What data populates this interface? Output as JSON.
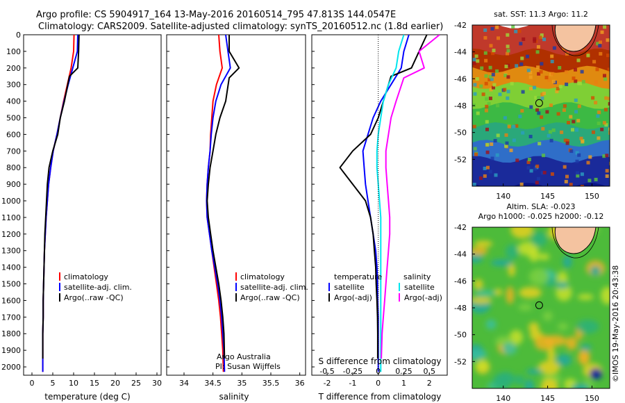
{
  "header": {
    "title_line1": "Argo profile: CS 5904917_164 13-May-2016 20160514_795 47.813S 144.0547E",
    "title_line2": "Climatology: CARS2009. Satellite-adjusted climatology: synTS_20160512.nc (1.8d earlier)"
  },
  "credit": "©IMOS 19-May-2016 20:43:38",
  "colors": {
    "climatology": "#ff0000",
    "satellite": "#0000ff",
    "argo": "#000000",
    "salinity_satellite": "#00e5ee",
    "salinity_argo": "#ff00ff"
  },
  "chart_data": [
    {
      "id": "temperature",
      "type": "line",
      "xlabel": "temperature (deg C)",
      "ylabel": "",
      "xlim": [
        -2,
        31
      ],
      "ylim": [
        2050,
        0
      ],
      "xticks": [
        0,
        5,
        10,
        15,
        20,
        25,
        30
      ],
      "yticks": [
        0,
        100,
        200,
        300,
        400,
        500,
        600,
        700,
        800,
        900,
        1000,
        1100,
        1200,
        1300,
        1400,
        1500,
        1600,
        1700,
        1800,
        1900,
        2000
      ],
      "legend": {
        "entries": [
          "climatology",
          "satellite-adj. clim.",
          "Argo(..raw -QC)"
        ],
        "position": "center-right"
      },
      "series": [
        {
          "name": "climatology",
          "color": "#ff0000",
          "x": [
            10.1,
            10.0,
            9.4,
            8.5,
            7.6,
            6.8,
            6.0,
            5.1,
            4.5,
            4.0,
            3.7,
            3.4,
            3.2,
            3.0,
            2.9,
            2.8,
            2.7,
            2.7,
            2.6,
            2.6,
            2.6
          ],
          "y": [
            0,
            100,
            200,
            300,
            400,
            500,
            600,
            700,
            800,
            900,
            1000,
            1100,
            1200,
            1300,
            1400,
            1500,
            1600,
            1700,
            1800,
            1900,
            2030
          ]
        },
        {
          "name": "satellite-adj. clim.",
          "color": "#0000ff",
          "x": [
            11.0,
            10.9,
            9.8,
            8.7,
            7.7,
            6.8,
            6.0,
            5.1,
            4.5,
            4.0,
            3.7,
            3.4,
            3.2,
            3.0,
            2.9,
            2.8,
            2.7,
            2.7,
            2.6,
            2.6,
            2.6
          ],
          "y": [
            0,
            100,
            200,
            300,
            400,
            500,
            600,
            700,
            800,
            900,
            1000,
            1100,
            1200,
            1300,
            1400,
            1500,
            1600,
            1700,
            1800,
            1900,
            2030
          ]
        },
        {
          "name": "Argo(..raw -QC)",
          "color": "#000000",
          "x": [
            11.3,
            11.2,
            11.0,
            9.0,
            7.8,
            6.8,
            6.2,
            5.0,
            4.1,
            3.7,
            3.5,
            3.3,
            3.1,
            3.0,
            2.9,
            2.8,
            2.7,
            2.7,
            2.6,
            2.6
          ],
          "y": [
            0,
            100,
            200,
            250,
            400,
            500,
            600,
            700,
            800,
            900,
            1000,
            1100,
            1200,
            1300,
            1400,
            1500,
            1600,
            1700,
            1800,
            1950
          ]
        }
      ]
    },
    {
      "id": "salinity",
      "type": "line",
      "xlabel": "salinity",
      "ylabel": "",
      "xlim": [
        33.7,
        36.1
      ],
      "ylim": [
        2050,
        0
      ],
      "xticks": [
        34,
        34.5,
        35,
        35.5,
        36
      ],
      "legend": {
        "entries": [
          "climatology",
          "satellite-adj. clim.",
          "Argo(..raw -QC)"
        ],
        "position": "center-right"
      },
      "annotation": [
        "Argo Australia",
        "PI: Susan Wijffels"
      ],
      "series": [
        {
          "name": "climatology",
          "color": "#ff0000",
          "x": [
            34.6,
            34.62,
            34.66,
            34.56,
            34.5,
            34.48,
            34.46,
            34.45,
            34.42,
            34.4,
            34.39,
            34.4,
            34.44,
            34.48,
            34.52,
            34.56,
            34.6,
            34.63,
            34.65,
            34.67,
            34.68
          ],
          "y": [
            0,
            100,
            200,
            300,
            400,
            500,
            600,
            700,
            800,
            900,
            1000,
            1100,
            1200,
            1300,
            1400,
            1500,
            1600,
            1700,
            1800,
            1900,
            2030
          ]
        },
        {
          "name": "satellite-adj. clim.",
          "color": "#0000ff",
          "x": [
            34.72,
            34.76,
            34.8,
            34.64,
            34.55,
            34.5,
            34.47,
            34.45,
            34.42,
            34.4,
            34.39,
            34.4,
            34.44,
            34.48,
            34.53,
            34.58,
            34.62,
            34.65,
            34.67,
            34.69,
            34.7
          ],
          "y": [
            0,
            100,
            200,
            300,
            400,
            500,
            600,
            700,
            800,
            900,
            1000,
            1100,
            1200,
            1300,
            1400,
            1500,
            1600,
            1700,
            1800,
            1900,
            2030
          ]
        },
        {
          "name": "Argo(..raw -QC)",
          "color": "#000000",
          "x": [
            34.78,
            34.78,
            34.95,
            34.78,
            34.72,
            34.62,
            34.55,
            34.5,
            34.45,
            34.42,
            34.4,
            34.42,
            34.46,
            34.5,
            34.55,
            34.6,
            34.64,
            34.67,
            34.69,
            34.7
          ],
          "y": [
            0,
            100,
            200,
            260,
            400,
            500,
            600,
            700,
            800,
            900,
            1000,
            1100,
            1200,
            1300,
            1400,
            1500,
            1600,
            1700,
            1800,
            1950
          ]
        }
      ]
    },
    {
      "id": "difference",
      "type": "line",
      "xlabel": "T difference from climatology",
      "xlabel_top": "S difference from climatology",
      "xlim": [
        -2.6,
        2.7
      ],
      "ylim": [
        2050,
        0
      ],
      "xticks": [
        -2,
        -1,
        0,
        1,
        2
      ],
      "xticks_s": [
        "-0.5",
        "-0.25",
        "0",
        "0.25",
        "0.5"
      ],
      "xticks_s_pos": [
        -2,
        -1,
        0,
        1,
        2
      ],
      "legend": {
        "temperature_title": "temperature",
        "salinity_title": "salinity",
        "entries": [
          "satellite",
          "Argo(-adj)",
          "satellite",
          "Argo(-adj)"
        ]
      },
      "series": [
        {
          "name": "satellite",
          "group": "temperature",
          "color": "#0000ff",
          "x": [
            1.2,
            1.0,
            0.9,
            0.5,
            0.1,
            -0.2,
            -0.4,
            -0.6,
            -0.55,
            -0.5,
            -0.4,
            -0.3,
            -0.2,
            -0.1,
            -0.05,
            -0.03,
            -0.02,
            0,
            0,
            0,
            0
          ],
          "y": [
            0,
            100,
            200,
            300,
            400,
            500,
            600,
            700,
            800,
            900,
            1000,
            1100,
            1200,
            1300,
            1400,
            1500,
            1600,
            1700,
            1800,
            1900,
            2030
          ]
        },
        {
          "name": "Argo(-adj)",
          "group": "temperature",
          "color": "#000000",
          "x": [
            1.9,
            1.6,
            1.3,
            0.5,
            0.2,
            0,
            -0.3,
            -1.0,
            -1.5,
            -1.0,
            -0.5,
            -0.3,
            -0.2,
            -0.15,
            -0.1,
            -0.08,
            -0.05,
            -0.03,
            -0.02,
            -0.02
          ],
          "y": [
            0,
            100,
            200,
            250,
            400,
            500,
            600,
            700,
            800,
            900,
            1000,
            1100,
            1200,
            1300,
            1400,
            1500,
            1600,
            1700,
            1800,
            1950
          ]
        },
        {
          "name": "satellite",
          "group": "salinity",
          "color": "#00e5ee",
          "x": [
            1.0,
            0.8,
            0.7,
            0.4,
            0.2,
            0.1,
            0.0,
            -0.05,
            -0.05,
            0,
            0.05,
            0.1,
            0.1,
            0.1,
            0.1,
            0.1,
            0.1,
            0.1,
            0.1,
            0.1,
            0.1
          ],
          "y": [
            0,
            100,
            200,
            300,
            400,
            500,
            600,
            700,
            800,
            900,
            1000,
            1100,
            1200,
            1300,
            1400,
            1500,
            1600,
            1700,
            1800,
            1900,
            2030
          ]
        },
        {
          "name": "Argo(-adj)",
          "group": "salinity",
          "color": "#ff00ff",
          "x": [
            2.4,
            1.6,
            1.8,
            1.0,
            0.7,
            0.5,
            0.4,
            0.3,
            0.3,
            0.35,
            0.4,
            0.45,
            0.45,
            0.4,
            0.35,
            0.3,
            0.25,
            0.2,
            0.15,
            0.12
          ],
          "y": [
            0,
            100,
            200,
            260,
            400,
            500,
            600,
            700,
            800,
            900,
            1000,
            1100,
            1200,
            1300,
            1400,
            1500,
            1600,
            1700,
            1800,
            1950
          ]
        }
      ]
    },
    {
      "id": "sst-map",
      "type": "heatmap",
      "title": "sat. SST: 11.3 Argo: 11.2",
      "xlim": [
        136.5,
        152
      ],
      "ylim": [
        -54,
        -42
      ],
      "xticks": [
        140,
        145,
        150
      ],
      "yticks": [
        -42,
        -44,
        -46,
        -48,
        -50,
        -52
      ],
      "marker": {
        "lon": 144.05,
        "lat": -47.81
      },
      "bands_lat": [
        -42,
        -44,
        -45.3,
        -46.5,
        -48,
        -49.5,
        -50.8,
        -52,
        -54
      ],
      "band_colors": [
        "#c0392b",
        "#b03000",
        "#e08a10",
        "#7fcf35",
        "#3cb944",
        "#2aa87a",
        "#2f6ec8",
        "#1a2a9a",
        "#0a1585"
      ]
    },
    {
      "id": "sla-map",
      "type": "heatmap",
      "title_line1": "Altim. SLA: -0.023",
      "title_line2": "Argo h1000: -0.025 h2000: -0.12",
      "xlim": [
        136.5,
        152
      ],
      "ylim": [
        -54,
        -42
      ],
      "xticks": [
        140,
        145,
        150
      ],
      "yticks": [
        -42,
        -44,
        -46,
        -48,
        -50,
        -52
      ],
      "marker": {
        "lon": 144.05,
        "lat": -47.81
      },
      "base_color": "#4dbb3a"
    }
  ]
}
